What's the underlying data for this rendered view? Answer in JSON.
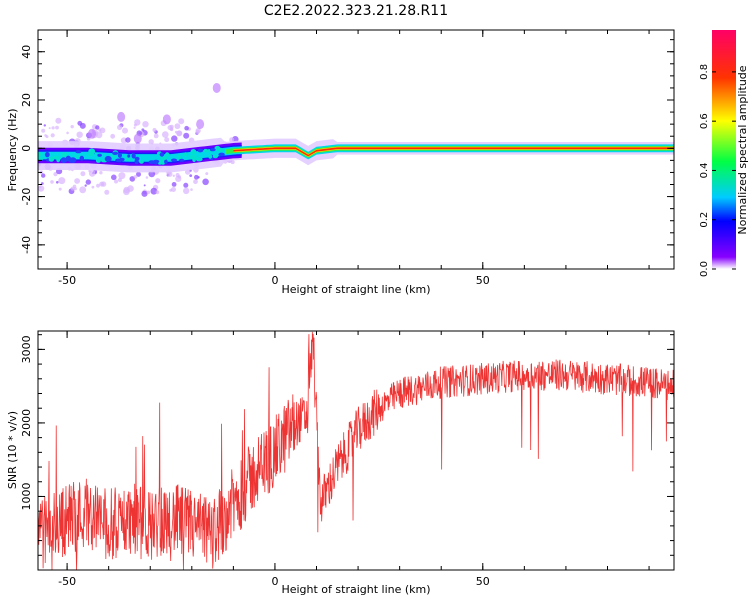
{
  "figure": {
    "title": "C2E2.2022.323.21.28.R11"
  },
  "chart_data": [
    {
      "type": "heatmap",
      "xlabel": "Height of straight line (km)",
      "ylabel": "Frequency (Hz)",
      "xlim": [
        -57,
        96
      ],
      "ylim": [
        -50,
        49
      ],
      "xticks": [
        -50,
        0,
        50
      ],
      "yticks": [
        -40,
        -20,
        0,
        20,
        40
      ],
      "colorbar": {
        "label": "Normalized spectral amplitude",
        "range": [
          0,
          0.97
        ],
        "ticks": [
          0.0,
          0.2,
          0.4,
          0.6,
          0.8
        ]
      },
      "ridge": [
        {
          "x": -56,
          "f": -3
        },
        {
          "x": -45,
          "f": -3
        },
        {
          "x": -35,
          "f": -4
        },
        {
          "x": -25,
          "f": -4
        },
        {
          "x": -15,
          "f": -2
        },
        {
          "x": -10,
          "f": -1
        },
        {
          "x": 0,
          "f": 0
        },
        {
          "x": 5,
          "f": 0
        },
        {
          "x": 8,
          "f": -3
        },
        {
          "x": 10,
          "f": -1
        },
        {
          "x": 15,
          "f": 0
        },
        {
          "x": 96,
          "f": 0
        }
      ]
    },
    {
      "type": "line",
      "xlabel": "Height of straight line (km)",
      "ylabel": "SNR (10 * v/v)",
      "xlim": [
        -57,
        96
      ],
      "ylim": [
        0,
        3250
      ],
      "xticks": [
        -50,
        0,
        50
      ],
      "yticks": [
        1000,
        2000,
        3000
      ],
      "color": "#ee3333",
      "series": [
        {
          "x": [
            -56,
            -53,
            -50,
            -45,
            -40,
            -35,
            -30,
            -25,
            -20,
            -15,
            -10,
            -5,
            0,
            5,
            8,
            9,
            11,
            15,
            20,
            25,
            30,
            40,
            50,
            60,
            70,
            80,
            90,
            96
          ],
          "values": [
            500,
            600,
            700,
            800,
            600,
            700,
            600,
            700,
            600,
            500,
            900,
            1300,
            1600,
            2000,
            2100,
            3200,
            900,
            1400,
            1900,
            2200,
            2400,
            2550,
            2600,
            2650,
            2650,
            2600,
            2550,
            2500
          ]
        }
      ]
    }
  ]
}
